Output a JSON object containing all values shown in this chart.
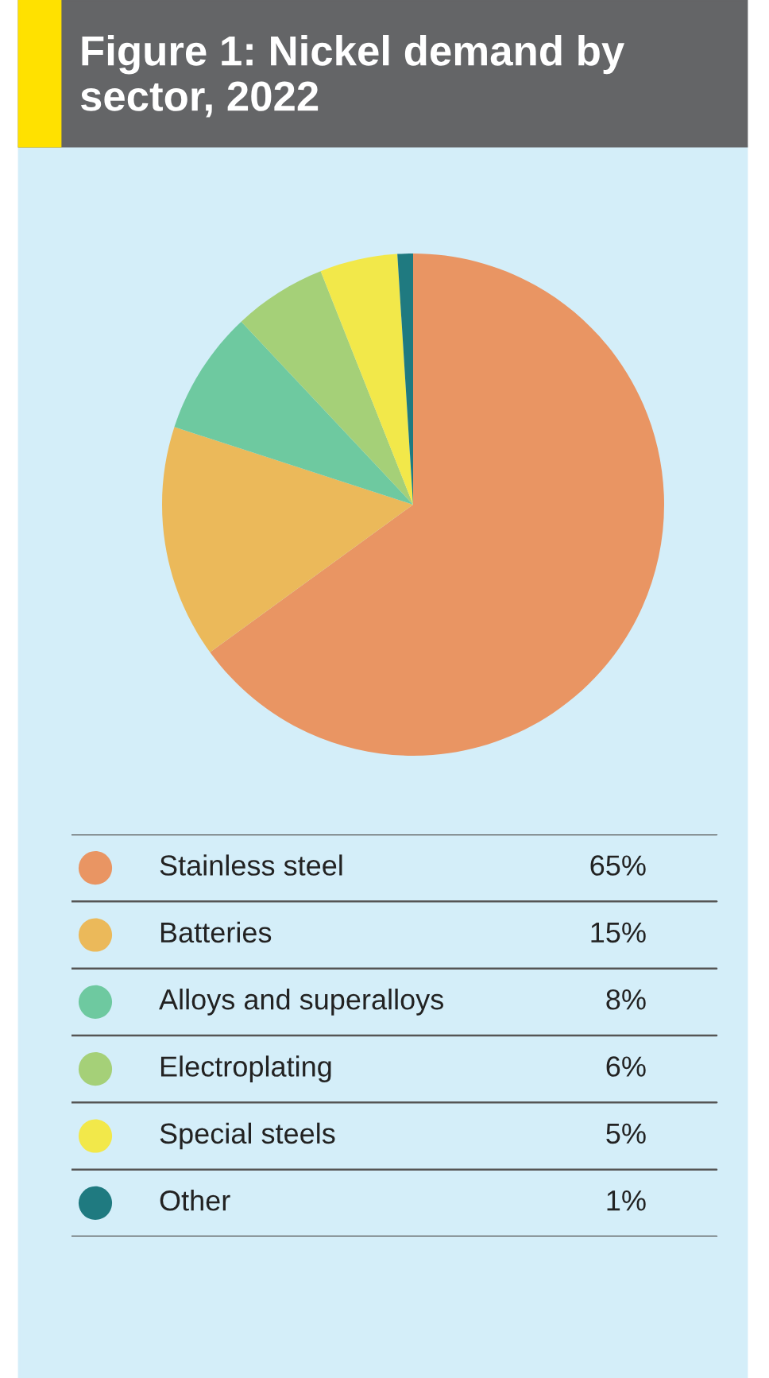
{
  "chart_data": {
    "type": "pie",
    "title": "Figure 1: Nickel demand by sector, 2022",
    "categories": [
      "Stainless steel",
      "Batteries",
      "Alloys and superalloys",
      "Electroplating",
      "Special steels",
      "Other"
    ],
    "values": [
      65,
      15,
      8,
      6,
      5,
      1
    ],
    "value_labels": [
      "65%",
      "15%",
      "8%",
      "6%",
      "5%",
      "1%"
    ],
    "colors": [
      "#e99563",
      "#ebb95a",
      "#6ec9a0",
      "#a5d078",
      "#f2e84a",
      "#1f7a80"
    ],
    "legend": "bottom"
  }
}
